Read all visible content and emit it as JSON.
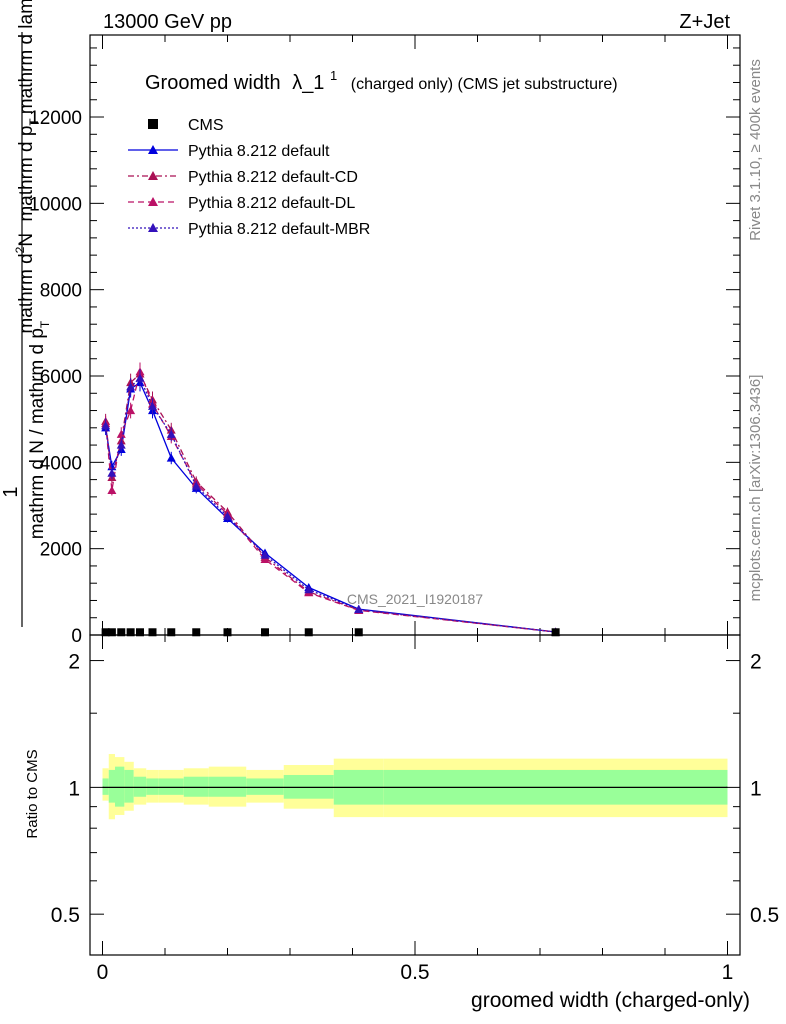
{
  "header": {
    "energy_label": "13000 GeV pp",
    "process_label": "Z+Jet"
  },
  "side_labels": {
    "rivet": "Rivet 3.1.10, ≥ 400k events",
    "mcplots": "mcplots.cern.ch [arXiv:1306.3436]"
  },
  "chart_data": [
    {
      "type": "line",
      "title": "Groomed width",
      "title_symbol": "λ_1",
      "title_superscript": "1",
      "title_suffix": "(charged only) (CMS jet substructure)",
      "watermark": "CMS_2021_I1920187",
      "ylabel_top": "1",
      "ylabel_numerator": "mathrm d",
      "ylabel_numerator_sup": "2",
      "ylabel_numerator_tail": "N",
      "ylabel_numerator_rest": "mathrm d p",
      "ylabel_numerator_sub": "T",
      "ylabel_numerator_end": "mathrm d lambda",
      "ylabel_denominator": "mathrm d N / mathrm d p",
      "ylabel_denominator_sub": "T",
      "xlim": [
        -0.02,
        1.02
      ],
      "ylim": [
        0,
        13900
      ],
      "yticks": [
        0,
        2000,
        4000,
        6000,
        8000,
        10000,
        12000
      ],
      "ytick_labels": [
        "0",
        "2000",
        "4000",
        "6000",
        "8000",
        "10000",
        "12000"
      ],
      "legend_position": "top-left",
      "x": [
        0.005,
        0.015,
        0.03,
        0.045,
        0.06,
        0.08,
        0.11,
        0.15,
        0.2,
        0.26,
        0.33,
        0.41,
        0.725
      ],
      "series": [
        {
          "name": "CMS",
          "style": "marker",
          "color": "#000000",
          "values": [
            40,
            40,
            40,
            40,
            40,
            40,
            40,
            40,
            40,
            40,
            40,
            40,
            40
          ]
        },
        {
          "name": "Pythia 8.212 default",
          "style": "solid",
          "color": "#0000dd",
          "values": [
            4800,
            3900,
            4300,
            5700,
            5850,
            5200,
            4100,
            3400,
            2700,
            1900,
            1100,
            600,
            70
          ]
        },
        {
          "name": "Pythia 8.212 default-CD",
          "style": "dashdot",
          "color": "#aa1155",
          "values": [
            4950,
            3650,
            4500,
            5850,
            6050,
            5450,
            4750,
            3550,
            2850,
            1800,
            1000,
            580,
            70
          ]
        },
        {
          "name": "Pythia 8.212 default-DL",
          "style": "dashed",
          "color": "#bb1166",
          "values": [
            4900,
            3350,
            4650,
            5200,
            6100,
            5350,
            4600,
            3500,
            2800,
            1750,
            980,
            570,
            70
          ]
        },
        {
          "name": "Pythia 8.212 default-MBR",
          "style": "dotted",
          "color": "#3311bb",
          "values": [
            4850,
            3750,
            4400,
            5750,
            5950,
            5300,
            4650,
            3450,
            2750,
            1850,
            1050,
            590,
            70
          ]
        }
      ]
    },
    {
      "type": "area",
      "ylabel": "Ratio to CMS",
      "xlabel": "groomed width (charged-only)",
      "xlim": [
        -0.02,
        1.02
      ],
      "ylim": [
        0.4,
        2.3
      ],
      "yscale": "log",
      "yticks": [
        0.5,
        1,
        2
      ],
      "ytick_labels": [
        "0.5",
        "1",
        "2"
      ],
      "xticks": [
        0,
        0.5,
        1
      ],
      "xtick_labels": [
        "0",
        "0.5",
        "1"
      ],
      "reference": 1,
      "bin_edges": [
        0,
        0.01,
        0.02,
        0.035,
        0.05,
        0.07,
        0.09,
        0.13,
        0.17,
        0.23,
        0.29,
        0.37,
        0.45,
        1.0
      ],
      "inner_band": [
        [
          0.96,
          1.05
        ],
        [
          0.92,
          1.1
        ],
        [
          0.9,
          1.12
        ],
        [
          0.92,
          1.1
        ],
        [
          0.95,
          1.06
        ],
        [
          0.96,
          1.05
        ],
        [
          0.96,
          1.05
        ],
        [
          0.95,
          1.06
        ],
        [
          0.95,
          1.06
        ],
        [
          0.96,
          1.05
        ],
        [
          0.94,
          1.07
        ],
        [
          0.91,
          1.1
        ],
        [
          0.91,
          1.1
        ]
      ],
      "outer_band": [
        [
          0.93,
          1.11
        ],
        [
          0.84,
          1.2
        ],
        [
          0.86,
          1.18
        ],
        [
          0.88,
          1.15
        ],
        [
          0.91,
          1.11
        ],
        [
          0.92,
          1.1
        ],
        [
          0.92,
          1.1
        ],
        [
          0.91,
          1.11
        ],
        [
          0.9,
          1.12
        ],
        [
          0.92,
          1.1
        ],
        [
          0.89,
          1.13
        ],
        [
          0.85,
          1.17
        ],
        [
          0.85,
          1.17
        ]
      ],
      "inner_color": "#99ff99",
      "outer_color": "#ffff99"
    }
  ]
}
